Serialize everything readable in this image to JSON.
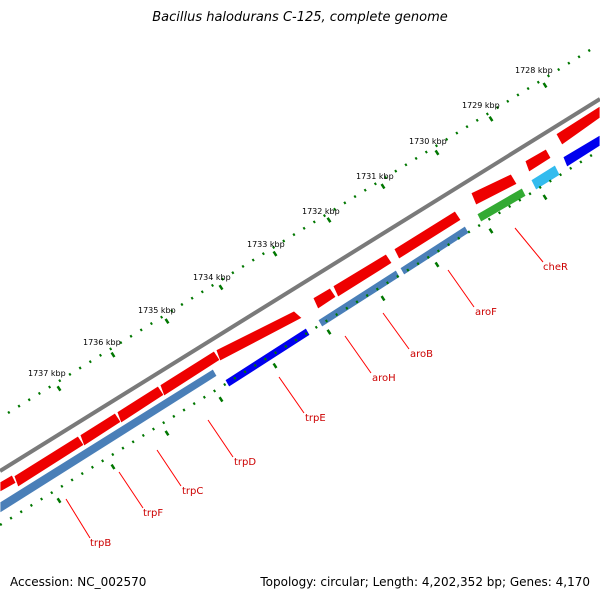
{
  "title": "Bacillus halodurans C-125, complete genome",
  "footer": {
    "accession": "Accession: NC_002570",
    "topology": "Topology: circular; Length: 4,202,352 bp; Genes: 4,170"
  },
  "ruler_labels": [
    "1728 kbp",
    "1729 kbp",
    "1730 kbp",
    "1731 kbp",
    "1732 kbp",
    "1733 kbp",
    "1734 kbp",
    "1735 kbp",
    "1736 kbp",
    "1737 kbp"
  ],
  "gene_labels": [
    "cheR",
    "aroF",
    "aroB",
    "aroH",
    "trpE",
    "trpD",
    "trpC",
    "trpF",
    "trpB"
  ],
  "colors": {
    "backbone": "#7a7a7a",
    "cds": "#ff0000",
    "gene": "#4a7fb8",
    "feature_blue": "#0000ee",
    "feature_cyan": "#33bbee",
    "feature_green": "#33aa33",
    "ticks": "#007700",
    "label": "#cc0000"
  }
}
